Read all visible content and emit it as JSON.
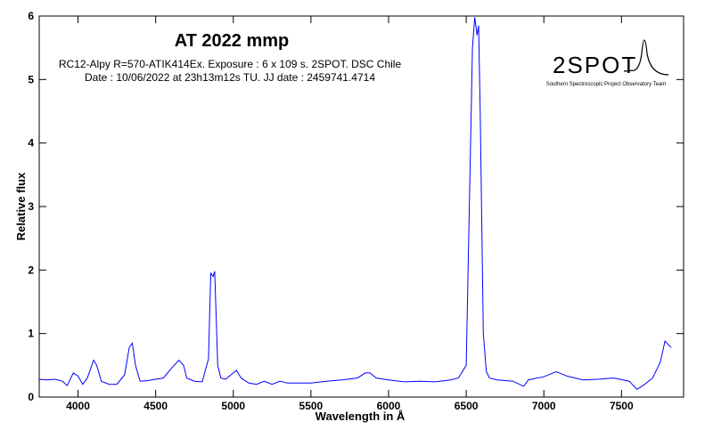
{
  "chart_data": {
    "type": "line",
    "title": "AT 2022 mmp",
    "subtitle": [
      "RC12-Alpy R=570-ATIK414Ex. Exposure : 6 x 109 s. 2SPOT. DSC Chile",
      "Date : 10/06/2022 at 23h13m12s TU. JJ date : 2459741.4714"
    ],
    "x_label": "Wavelength in Å",
    "y_label": "Relative flux",
    "logo": {
      "name": "2SPOT",
      "caption": "Southern Spectroscopic Project Observatory Team"
    },
    "xlim": [
      3750,
      7900
    ],
    "ylim": [
      0,
      6
    ],
    "xticks": [
      4000,
      4500,
      5000,
      5500,
      6000,
      6500,
      7000,
      7500
    ],
    "yticks": [
      0,
      1,
      2,
      3,
      4,
      5,
      6
    ],
    "x": [
      3750,
      3800,
      3850,
      3900,
      3930,
      3970,
      4000,
      4030,
      4060,
      4100,
      4120,
      4150,
      4200,
      4250,
      4300,
      4330,
      4350,
      4370,
      4400,
      4450,
      4500,
      4550,
      4600,
      4650,
      4680,
      4700,
      4750,
      4800,
      4840,
      4855,
      4870,
      4880,
      4900,
      4920,
      4950,
      5000,
      5020,
      5050,
      5100,
      5150,
      5200,
      5250,
      5300,
      5350,
      5400,
      5500,
      5600,
      5700,
      5800,
      5850,
      5880,
      5920,
      6000,
      6100,
      6200,
      6300,
      6400,
      6450,
      6500,
      6520,
      6540,
      6555,
      6570,
      6580,
      6590,
      6610,
      6630,
      6650,
      6700,
      6800,
      6870,
      6900,
      7000,
      7080,
      7150,
      7250,
      7350,
      7450,
      7550,
      7600,
      7650,
      7700,
      7750,
      7780,
      7800,
      7820
    ],
    "series": [
      {
        "color": "#0000ff",
        "values": [
          0.28,
          0.27,
          0.28,
          0.25,
          0.18,
          0.38,
          0.33,
          0.2,
          0.3,
          0.58,
          0.5,
          0.25,
          0.2,
          0.2,
          0.35,
          0.78,
          0.85,
          0.5,
          0.25,
          0.26,
          0.28,
          0.3,
          0.45,
          0.58,
          0.5,
          0.3,
          0.25,
          0.24,
          0.6,
          1.95,
          1.9,
          1.98,
          0.5,
          0.3,
          0.28,
          0.38,
          0.42,
          0.3,
          0.22,
          0.2,
          0.25,
          0.2,
          0.25,
          0.22,
          0.22,
          0.22,
          0.25,
          0.27,
          0.3,
          0.38,
          0.38,
          0.3,
          0.27,
          0.24,
          0.25,
          0.24,
          0.27,
          0.3,
          0.5,
          3.0,
          5.5,
          5.98,
          5.7,
          5.85,
          4.5,
          1.0,
          0.4,
          0.3,
          0.27,
          0.25,
          0.17,
          0.27,
          0.32,
          0.4,
          0.33,
          0.27,
          0.28,
          0.3,
          0.25,
          0.12,
          0.2,
          0.3,
          0.55,
          0.88,
          0.83,
          0.78
        ]
      }
    ]
  }
}
